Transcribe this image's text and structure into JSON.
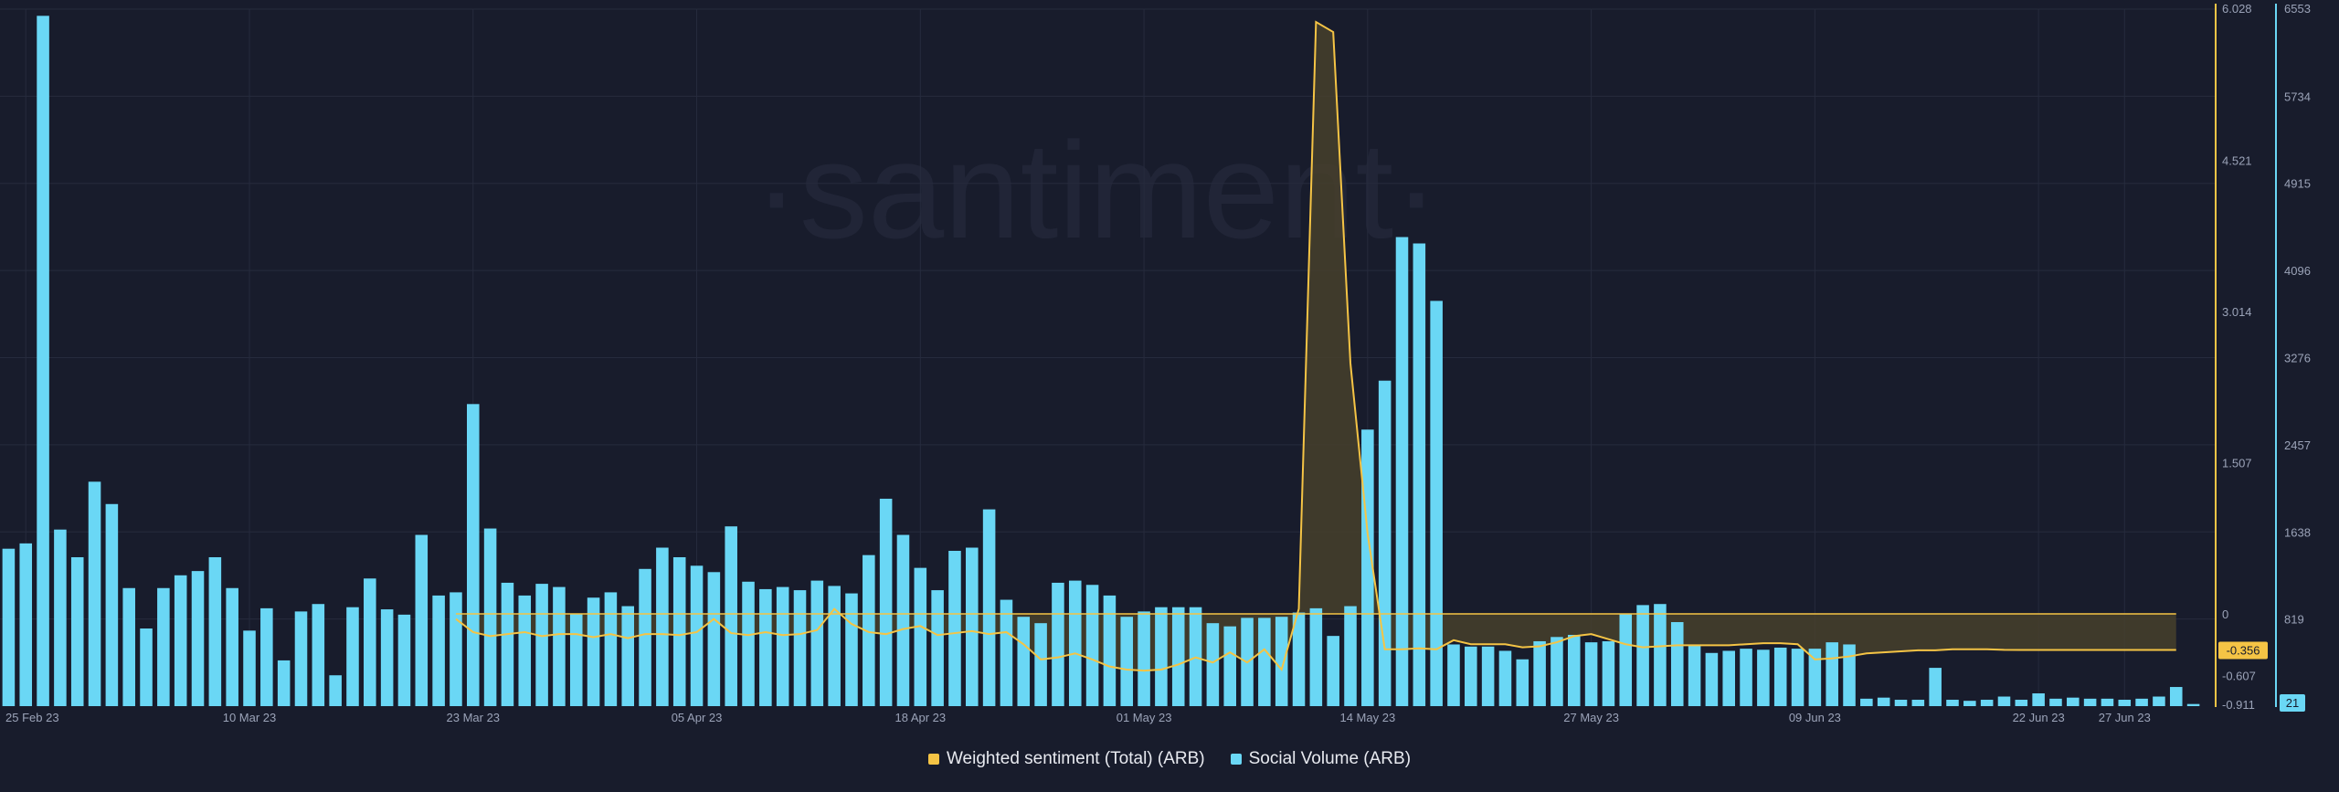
{
  "chart_data": {
    "type": "bar",
    "watermark": "·santiment·",
    "x_ticks": [
      "25 Feb 23",
      "10 Mar 23",
      "23 Mar 23",
      "05 Apr 23",
      "18 Apr 23",
      "01 May 23",
      "14 May 23",
      "27 May 23",
      "09 Jun 23",
      "22 Jun 23",
      "27 Jun 23"
    ],
    "x_tick_index": [
      1,
      14,
      27,
      40,
      53,
      66,
      79,
      92,
      105,
      118,
      123
    ],
    "y_left": {
      "ticks": [
        "6.028",
        "4.521",
        "3.014",
        "1.507",
        "0",
        "-0.607",
        "-0.911"
      ],
      "tick_values": [
        6.028,
        4.521,
        3.014,
        1.507,
        0,
        -0.607,
        -0.911
      ],
      "range": [
        -0.911,
        6.028
      ]
    },
    "y_right": {
      "ticks": [
        "6553",
        "5734",
        "4915",
        "4096",
        "3276",
        "2457",
        "1638",
        "819"
      ],
      "tick_values": [
        6553,
        5734,
        4915,
        4096,
        3276,
        2457,
        1638,
        819
      ],
      "range": [
        0,
        6553
      ]
    },
    "badge_left": "-0.356",
    "badge_right": "21",
    "colors": {
      "background": "#181c2c",
      "social": "#6ad7f5",
      "sentiment": "#f5c445",
      "sentiment_fill": "#47402c",
      "axis_text": "#9ba3b8",
      "grid": "#262b3d"
    },
    "series": [
      {
        "name": "Social Volume (ARB)",
        "axis": "right",
        "values": [
          1480,
          1530,
          6490,
          1660,
          1400,
          2110,
          1900,
          1110,
          730,
          1110,
          1230,
          1270,
          1400,
          1110,
          710,
          920,
          430,
          890,
          960,
          290,
          930,
          1200,
          910,
          860,
          1610,
          1040,
          1070,
          2840,
          1670,
          1160,
          1040,
          1150,
          1120,
          870,
          1020,
          1070,
          940,
          1290,
          1490,
          1400,
          1320,
          1260,
          1690,
          1170,
          1100,
          1120,
          1090,
          1180,
          1130,
          1060,
          1420,
          1950,
          1610,
          1300,
          1090,
          1460,
          1490,
          1850,
          1000,
          840,
          780,
          1160,
          1180,
          1140,
          1040,
          840,
          890,
          930,
          930,
          930,
          780,
          750,
          830,
          830,
          840,
          880,
          920,
          660,
          940,
          2600,
          3060,
          4410,
          4350,
          3810,
          580,
          560,
          560,
          520,
          440,
          610,
          650,
          670,
          600,
          610,
          870,
          950,
          960,
          790,
          570,
          500,
          520,
          540,
          530,
          550,
          540,
          540,
          600,
          580,
          70,
          80,
          60,
          60,
          360,
          60,
          50,
          60,
          90,
          60,
          120,
          70,
          80,
          70,
          70,
          60,
          70,
          90,
          180,
          20
        ]
      },
      {
        "name": "Weighted sentiment (Total) (ARB)",
        "axis": "left",
        "start_index": 26,
        "values": [
          -0.05,
          -0.18,
          -0.22,
          -0.2,
          -0.18,
          -0.22,
          -0.2,
          -0.2,
          -0.23,
          -0.2,
          -0.24,
          -0.2,
          -0.2,
          -0.21,
          -0.18,
          -0.05,
          -0.19,
          -0.21,
          -0.18,
          -0.21,
          -0.2,
          -0.16,
          0.05,
          -0.1,
          -0.18,
          -0.2,
          -0.15,
          -0.12,
          -0.21,
          -0.19,
          -0.17,
          -0.2,
          -0.18,
          -0.3,
          -0.45,
          -0.43,
          -0.39,
          -0.45,
          -0.52,
          -0.55,
          -0.56,
          -0.55,
          -0.5,
          -0.43,
          -0.48,
          -0.38,
          -0.48,
          -0.35,
          -0.55,
          0.05,
          5.9,
          5.8,
          2.5,
          0.8,
          -0.35,
          -0.35,
          -0.34,
          -0.35,
          -0.26,
          -0.3,
          -0.3,
          -0.3,
          -0.33,
          -0.32,
          -0.28,
          -0.22,
          -0.2,
          -0.25,
          -0.3,
          -0.33,
          -0.32,
          -0.31,
          -0.31,
          -0.31,
          -0.31,
          -0.3,
          -0.29,
          -0.29,
          -0.3,
          -0.45,
          -0.44,
          -0.42,
          -0.39,
          -0.38,
          -0.37,
          -0.36,
          -0.36,
          -0.35,
          -0.35,
          -0.35,
          -0.355,
          -0.356
        ]
      }
    ]
  },
  "legend": [
    {
      "label": "Weighted sentiment (Total) (ARB)",
      "color": "#f5c445"
    },
    {
      "label": "Social Volume (ARB)",
      "color": "#6ad7f5"
    }
  ]
}
